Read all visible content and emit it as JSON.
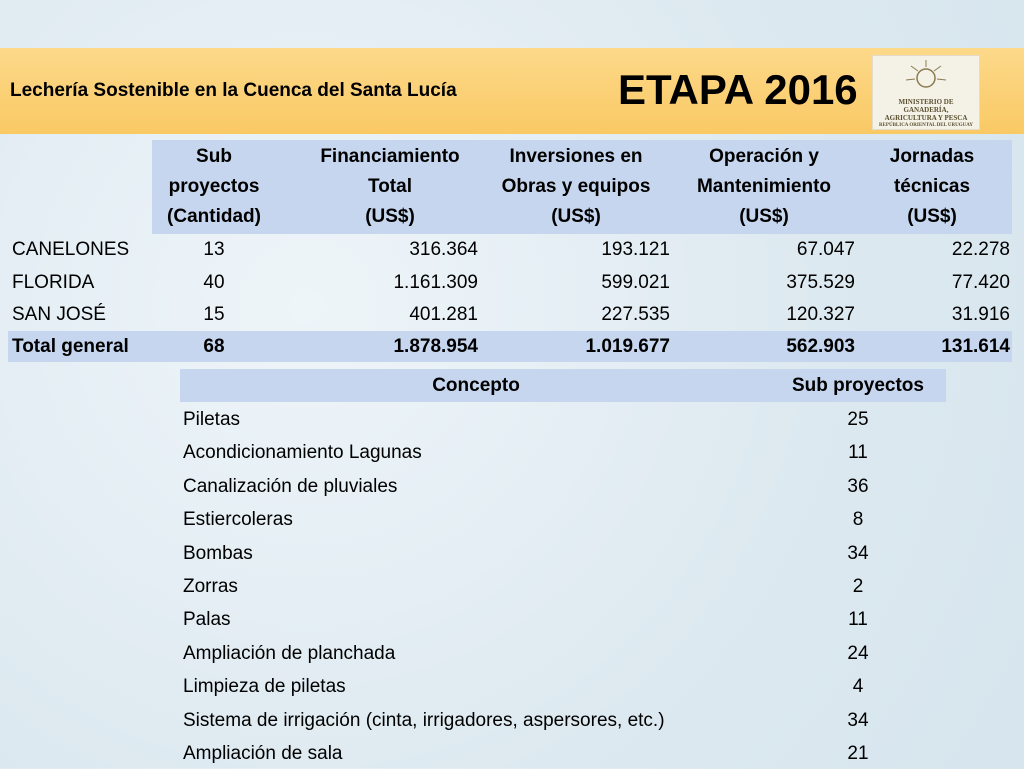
{
  "header": {
    "subtitle": "Lechería Sostenible en la Cuenca del Santa Lucía",
    "title": "ETAPA 2016",
    "logo": [
      "MINISTERIO DE GANADERÍA,",
      "AGRICULTURA Y PESCA",
      "REPÚBLICA ORIENTAL DEL URUGUAY"
    ]
  },
  "table": {
    "columns": [
      [
        "Sub",
        "proyectos",
        "(Cantidad)"
      ],
      [
        "Financiamiento",
        "Total",
        "(US$)"
      ],
      [
        "Inversiones en",
        "Obras y equipos",
        "(US$)"
      ],
      [
        "Operación y",
        "Mantenimiento",
        "(US$)"
      ],
      [
        "Jornadas",
        "técnicas",
        "(US$)"
      ]
    ],
    "rows": [
      [
        "CANELONES",
        "13",
        "316.364",
        "193.121",
        "67.047",
        "22.278"
      ],
      [
        "FLORIDA",
        "40",
        "1.161.309",
        "599.021",
        "375.529",
        "77.420"
      ],
      [
        "SAN JOSÉ",
        "15",
        "401.281",
        "227.535",
        "120.327",
        "31.916"
      ]
    ],
    "total": [
      "Total general",
      "68",
      "1.878.954",
      "1.019.677",
      "562.903",
      "131.614"
    ]
  },
  "table2": {
    "columns": [
      "Concepto",
      "Sub proyectos"
    ],
    "rows": [
      [
        "Piletas",
        "25"
      ],
      [
        "Acondicionamiento Lagunas",
        "11"
      ],
      [
        "Canalización de pluviales",
        "36"
      ],
      [
        "Estiercoleras",
        "8"
      ],
      [
        "Bombas",
        "34"
      ],
      [
        "Zorras",
        "2"
      ],
      [
        "Palas",
        "11"
      ],
      [
        "Ampliación de planchada",
        "24"
      ],
      [
        "Limpieza de piletas",
        "4"
      ],
      [
        "Sistema de irrigación (cinta, irrigadores, aspersores, etc.)",
        "34"
      ],
      [
        "Ampliación de sala",
        "21"
      ]
    ]
  }
}
